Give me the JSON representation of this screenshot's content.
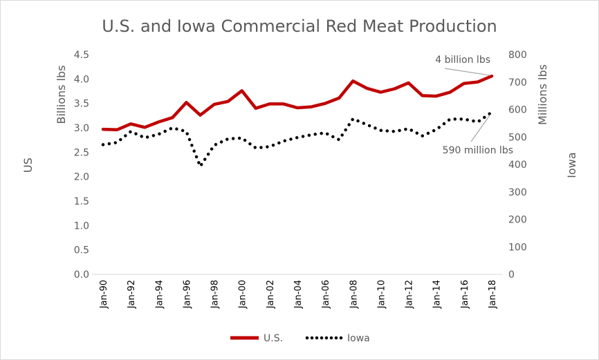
{
  "chart_data": {
    "type": "line",
    "title": "U.S. and Iowa Commercial Red Meat Production",
    "left_axis": {
      "label": "Billions lbs",
      "side_label": "US",
      "ticks": [
        "0.0",
        "0.5",
        "1.0",
        "1.5",
        "2.0",
        "2.5",
        "3.0",
        "3.5",
        "4.0",
        "4.5"
      ],
      "ylim": [
        0,
        4.5
      ]
    },
    "right_axis": {
      "label": "Millions lbs",
      "side_label": "Iowa",
      "ticks": [
        "0",
        "100",
        "200",
        "300",
        "400",
        "500",
        "600",
        "700",
        "800"
      ],
      "ylim": [
        0,
        800
      ]
    },
    "x_tick_labels": [
      "Jan-90",
      "Jan-92",
      "Jan-94",
      "Jan-96",
      "Jan-98",
      "Jan-00",
      "Jan-02",
      "Jan-04",
      "Jan-06",
      "Jan-08",
      "Jan-10",
      "Jan-12",
      "Jan-14",
      "Jan-16",
      "Jan-18"
    ],
    "x": [
      1990,
      1991,
      1992,
      1993,
      1994,
      1995,
      1996,
      1997,
      1998,
      1999,
      2000,
      2001,
      2002,
      2003,
      2004,
      2005,
      2006,
      2007,
      2008,
      2009,
      2010,
      2011,
      2012,
      2013,
      2014,
      2015,
      2016,
      2017,
      2018
    ],
    "grid": false,
    "legend_position": "bottom",
    "series": [
      {
        "name": "U.S.",
        "axis": "left",
        "color": "#c00000",
        "style": "solid",
        "values": [
          2.97,
          2.96,
          3.08,
          3.01,
          3.12,
          3.21,
          3.52,
          3.26,
          3.48,
          3.54,
          3.76,
          3.4,
          3.49,
          3.49,
          3.41,
          3.43,
          3.5,
          3.61,
          3.96,
          3.81,
          3.73,
          3.8,
          3.92,
          3.66,
          3.65,
          3.73,
          3.91,
          3.94,
          4.06
        ]
      },
      {
        "name": "Iowa",
        "axis": "right",
        "color": "#000000",
        "style": "dotted",
        "values": [
          472,
          480,
          520,
          497,
          510,
          533,
          520,
          393,
          470,
          493,
          496,
          460,
          465,
          485,
          498,
          508,
          515,
          490,
          566,
          545,
          524,
          520,
          530,
          504,
          527,
          565,
          565,
          555,
          590
        ]
      }
    ],
    "annotations": [
      {
        "text": "4 billion lbs",
        "series": 0,
        "point_index": 28
      },
      {
        "text": "590 million lbs",
        "series": 1,
        "point_index": 28
      }
    ]
  }
}
